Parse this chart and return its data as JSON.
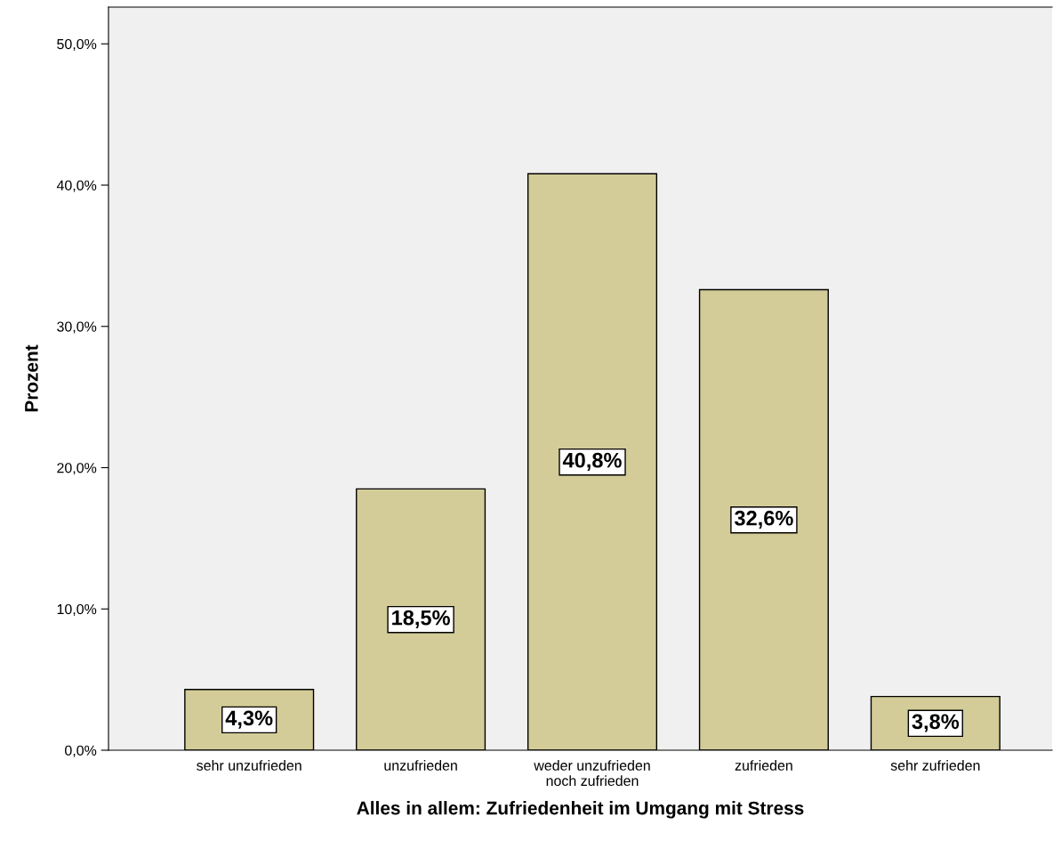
{
  "chart_data": {
    "type": "bar",
    "categories": [
      "sehr unzufrieden",
      "unzufrieden",
      "weder unzufrieden\nnoch zufrieden",
      "zufrieden",
      "sehr zufrieden"
    ],
    "values": [
      4.3,
      18.5,
      40.8,
      32.6,
      3.8
    ],
    "value_labels": [
      "4,3%",
      "18,5%",
      "40,8%",
      "32,6%",
      "3,8%"
    ],
    "color": "#d3cc98",
    "xlabel": "Alles in allem: Zufriedenheit im Umgang mit Stress",
    "ylabel": "Prozent",
    "ylim": [
      0,
      52.6
    ],
    "yticks": [
      {
        "value": 0,
        "label": "0,0%"
      },
      {
        "value": 10,
        "label": "10,0%"
      },
      {
        "value": 20,
        "label": "20,0%"
      },
      {
        "value": 30,
        "label": "30,0%"
      },
      {
        "value": 40,
        "label": "40,0%"
      },
      {
        "value": 50,
        "label": "50,0%"
      }
    ],
    "grid": false
  }
}
